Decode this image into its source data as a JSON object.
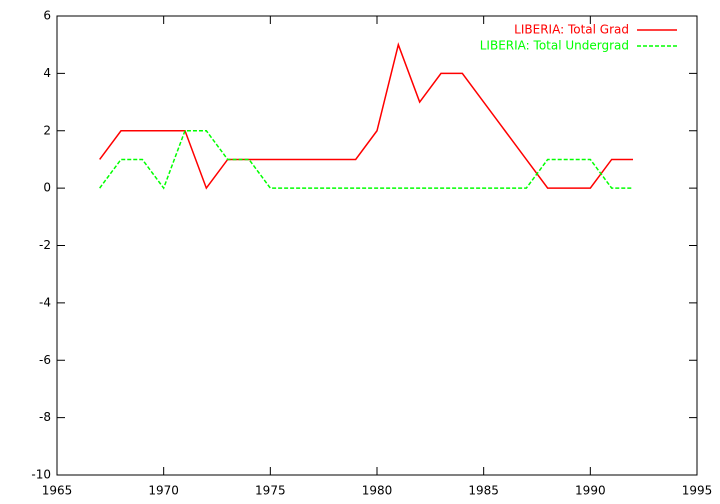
{
  "chart_data": {
    "type": "line",
    "x": [
      1967,
      1968,
      1969,
      1970,
      1971,
      1972,
      1973,
      1974,
      1975,
      1976,
      1977,
      1978,
      1979,
      1980,
      1981,
      1982,
      1983,
      1984,
      1985,
      1986,
      1987,
      1988,
      1989,
      1990,
      1991,
      1992
    ],
    "series": [
      {
        "name": "LIBERIA: Total Grad",
        "color": "#ff0000",
        "dash": false,
        "values": [
          1,
          2,
          2,
          2,
          2,
          0,
          1,
          1,
          1,
          1,
          1,
          1,
          1,
          2,
          5,
          3,
          4,
          4,
          3,
          2,
          1,
          0,
          0,
          0,
          1,
          1
        ]
      },
      {
        "name": "LIBERIA: Total Undergrad",
        "color": "#00ff00",
        "dash": true,
        "values": [
          0,
          1,
          1,
          0,
          2,
          2,
          1,
          1,
          0,
          0,
          0,
          0,
          0,
          0,
          0,
          0,
          0,
          0,
          0,
          0,
          0,
          1,
          1,
          1,
          0,
          0
        ]
      }
    ],
    "xlim": [
      1965,
      1995
    ],
    "xticks": [
      1965,
      1970,
      1975,
      1980,
      1985,
      1990,
      1995
    ],
    "ylim": [
      -10,
      6
    ],
    "yticks": [
      -10,
      -8,
      -6,
      -4,
      -2,
      0,
      2,
      4,
      6
    ],
    "legend": "top-right"
  }
}
